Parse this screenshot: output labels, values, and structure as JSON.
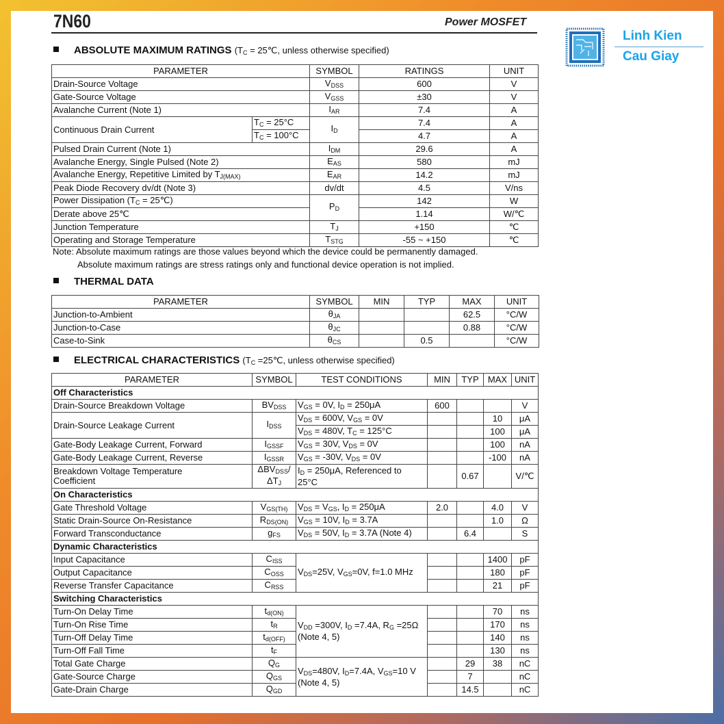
{
  "header": {
    "title": "7N60",
    "subtitle": "Power MOSFET"
  },
  "logo": {
    "line1": "Linh Kien",
    "line2": "Cau Giay",
    "color": "#1aa3e8"
  },
  "abs": {
    "heading": "ABSOLUTE MAXIMUM RATINGS",
    "note": "(T_{C} = 25℃, unless otherwise specified)",
    "rows": [
      [
        {
          "t": "PARAMETER",
          "cs": 2,
          "c": 1
        },
        {
          "t": "SYMBOL",
          "c": 1
        },
        {
          "t": "RATINGS",
          "c": 1
        },
        {
          "t": "UNIT",
          "c": 1
        }
      ],
      [
        {
          "t": "Drain-Source Voltage",
          "cs": 2
        },
        {
          "t": "V_{DSS}",
          "c": 1
        },
        {
          "t": "600",
          "c": 1
        },
        {
          "t": "V",
          "c": 1
        }
      ],
      [
        {
          "t": "Gate-Source Voltage",
          "cs": 2
        },
        {
          "t": "V_{GSS}",
          "c": 1
        },
        {
          "t": "±30",
          "c": 1
        },
        {
          "t": "V",
          "c": 1
        }
      ],
      [
        {
          "t": "Avalanche Current (Note 1)",
          "cs": 2
        },
        {
          "t": "I_{AR}",
          "c": 1
        },
        {
          "t": "7.4",
          "c": 1
        },
        {
          "t": "A",
          "c": 1
        }
      ],
      [
        {
          "t": "Continuous Drain Current",
          "rs": 2
        },
        {
          "t": "T_{C} = 25°C"
        },
        {
          "t": "I_{D}",
          "rs": 2,
          "c": 1
        },
        {
          "t": "7.4",
          "c": 1
        },
        {
          "t": "A",
          "c": 1
        }
      ],
      [
        {
          "t": "T_{C} = 100°C"
        },
        {
          "t": "4.7",
          "c": 1
        },
        {
          "t": "A",
          "c": 1
        }
      ],
      [
        {
          "t": "Pulsed Drain Current (Note 1)",
          "cs": 2
        },
        {
          "t": "I_{DM}",
          "c": 1
        },
        {
          "t": "29.6",
          "c": 1
        },
        {
          "t": "A",
          "c": 1
        }
      ],
      [
        {
          "t": "Avalanche Energy, Single Pulsed (Note 2)",
          "cs": 2
        },
        {
          "t": "E_{AS}",
          "c": 1
        },
        {
          "t": "580",
          "c": 1
        },
        {
          "t": "mJ",
          "c": 1
        }
      ],
      [
        {
          "t": "Avalanche Energy, Repetitive Limited by T_{J(MAX)}",
          "cs": 2
        },
        {
          "t": "E_{AR}",
          "c": 1
        },
        {
          "t": "14.2",
          "c": 1
        },
        {
          "t": "mJ",
          "c": 1
        }
      ],
      [
        {
          "t": "Peak Diode Recovery dv/dt (Note 3)",
          "cs": 2
        },
        {
          "t": "dv/dt",
          "c": 1
        },
        {
          "t": "4.5",
          "c": 1
        },
        {
          "t": "V/ns",
          "c": 1
        }
      ],
      [
        {
          "t": "Power Dissipation (T_{C} = 25℃)",
          "cs": 2
        },
        {
          "t": "P_{D}",
          "rs": 2,
          "c": 1
        },
        {
          "t": "142",
          "c": 1
        },
        {
          "t": "W",
          "c": 1
        }
      ],
      [
        {
          "t": "Derate above 25℃",
          "cs": 2
        },
        {
          "t": "1.14",
          "c": 1
        },
        {
          "t": "W/℃",
          "c": 1
        }
      ],
      [
        {
          "t": "Junction Temperature",
          "cs": 2
        },
        {
          "t": "T_{J}",
          "c": 1
        },
        {
          "t": "+150",
          "c": 1
        },
        {
          "t": "℃",
          "c": 1
        }
      ],
      [
        {
          "t": "Operating and Storage Temperature",
          "cs": 2
        },
        {
          "t": "T_{STG}",
          "c": 1
        },
        {
          "t": "-55 ~ +150",
          "c": 1
        },
        {
          "t": "℃",
          "c": 1
        }
      ]
    ],
    "note1": "Note: Absolute maximum ratings are those values beyond which the device could be permanently damaged.",
    "note2": "Absolute maximum ratings are stress ratings only and functional device operation is not implied."
  },
  "thermal": {
    "heading": "THERMAL DATA",
    "rows": [
      [
        {
          "t": "PARAMETER",
          "c": 1
        },
        {
          "t": "SYMBOL",
          "c": 1
        },
        {
          "t": "MIN",
          "c": 1
        },
        {
          "t": "TYP",
          "c": 1
        },
        {
          "t": "MAX",
          "c": 1
        },
        {
          "t": "UNIT",
          "c": 1
        }
      ],
      [
        {
          "t": "Junction-to-Ambient"
        },
        {
          "t": "θ_{JA}",
          "c": 1
        },
        {
          "t": ""
        },
        {
          "t": ""
        },
        {
          "t": "62.5",
          "c": 1
        },
        {
          "t": "°C/W",
          "c": 1
        }
      ],
      [
        {
          "t": "Junction-to-Case"
        },
        {
          "t": "θ_{JC}",
          "c": 1
        },
        {
          "t": ""
        },
        {
          "t": ""
        },
        {
          "t": "0.88",
          "c": 1
        },
        {
          "t": "°C/W",
          "c": 1
        }
      ],
      [
        {
          "t": "Case-to-Sink"
        },
        {
          "t": "θ_{CS}",
          "c": 1
        },
        {
          "t": ""
        },
        {
          "t": "0.5",
          "c": 1
        },
        {
          "t": ""
        },
        {
          "t": "°C/W",
          "c": 1
        }
      ]
    ]
  },
  "elec": {
    "heading": "ELECTRICAL CHARACTERISTICS",
    "note": "(T_{C} =25℃, unless otherwise specified)",
    "rows": [
      [
        {
          "t": "PARAMETER",
          "c": 1
        },
        {
          "t": "SYMBOL",
          "c": 1
        },
        {
          "t": "TEST CONDITIONS",
          "c": 1
        },
        {
          "t": "MIN",
          "c": 1
        },
        {
          "t": "TYP",
          "c": 1
        },
        {
          "t": "MAX",
          "c": 1
        },
        {
          "t": "UNIT",
          "c": 1
        }
      ],
      [
        {
          "t": "Off Characteristics",
          "cs": 7,
          "g": 1
        }
      ],
      [
        {
          "t": "Drain-Source Breakdown Voltage"
        },
        {
          "t": "BV_{DSS}",
          "c": 1
        },
        {
          "t": "V_{GS} = 0V, I_{D} = 250μA"
        },
        {
          "t": "600",
          "c": 1
        },
        {
          "t": ""
        },
        {
          "t": ""
        },
        {
          "t": "V",
          "c": 1
        }
      ],
      [
        {
          "t": "Drain-Source Leakage Current",
          "rs": 2
        },
        {
          "t": "I_{DSS}",
          "rs": 2,
          "c": 1
        },
        {
          "t": "V_{DS} = 600V, V_{GS} = 0V"
        },
        {
          "t": ""
        },
        {
          "t": ""
        },
        {
          "t": "10",
          "c": 1
        },
        {
          "t": "μA",
          "c": 1
        }
      ],
      [
        {
          "t": "V_{DS} = 480V, T_{C} = 125°C"
        },
        {
          "t": ""
        },
        {
          "t": ""
        },
        {
          "t": "100",
          "c": 1
        },
        {
          "t": "μA",
          "c": 1
        }
      ],
      [
        {
          "t": "Gate-Body Leakage Current, Forward"
        },
        {
          "t": "I_{GSSF}",
          "c": 1
        },
        {
          "t": "V_{GS} = 30V, V_{DS} = 0V"
        },
        {
          "t": ""
        },
        {
          "t": ""
        },
        {
          "t": "100",
          "c": 1
        },
        {
          "t": "nA",
          "c": 1
        }
      ],
      [
        {
          "t": "Gate-Body Leakage Current, Reverse"
        },
        {
          "t": "I_{GSSR}",
          "c": 1
        },
        {
          "t": "V_{GS} = -30V, V_{DS} = 0V"
        },
        {
          "t": ""
        },
        {
          "t": ""
        },
        {
          "t": "-100",
          "c": 1
        },
        {
          "t": "nA",
          "c": 1
        }
      ],
      [
        {
          "t": "Breakdown Voltage Temperature\nCoefficient"
        },
        {
          "t": "ΔBV_{DSS}/\nΔT_{J}",
          "c": 1
        },
        {
          "t": "I_{D} = 250μA, Referenced to\n25°C"
        },
        {
          "t": ""
        },
        {
          "t": "0.67",
          "c": 1
        },
        {
          "t": ""
        },
        {
          "t": "V/℃",
          "c": 1
        }
      ],
      [
        {
          "t": "On Characteristics",
          "cs": 7,
          "g": 1
        }
      ],
      [
        {
          "t": "Gate Threshold Voltage"
        },
        {
          "t": "V_{GS(TH)}",
          "c": 1
        },
        {
          "t": "V_{DS} = V_{GS}, I_{D} = 250μA"
        },
        {
          "t": "2.0",
          "c": 1
        },
        {
          "t": ""
        },
        {
          "t": "4.0",
          "c": 1
        },
        {
          "t": "V",
          "c": 1
        }
      ],
      [
        {
          "t": "Static Drain-Source On-Resistance"
        },
        {
          "t": "R_{DS(ON)}",
          "c": 1
        },
        {
          "t": "V_{GS} = 10V, I_{D} = 3.7A"
        },
        {
          "t": ""
        },
        {
          "t": ""
        },
        {
          "t": "1.0",
          "c": 1
        },
        {
          "t": "Ω",
          "c": 1
        }
      ],
      [
        {
          "t": "Forward Transconductance"
        },
        {
          "t": "g_{FS}",
          "c": 1
        },
        {
          "t": "V_{DS} = 50V, I_{D} = 3.7A (Note 4)"
        },
        {
          "t": ""
        },
        {
          "t": "6.4",
          "c": 1
        },
        {
          "t": ""
        },
        {
          "t": "S",
          "c": 1
        }
      ],
      [
        {
          "t": "Dynamic Characteristics",
          "cs": 7,
          "g": 1
        }
      ],
      [
        {
          "t": "Input Capacitance"
        },
        {
          "t": "C_{ISS}",
          "c": 1
        },
        {
          "t": "V_{DS}=25V, V_{GS}=0V, f=1.0 MHz",
          "rs": 3
        },
        {
          "t": ""
        },
        {
          "t": ""
        },
        {
          "t": "1400",
          "c": 1
        },
        {
          "t": "pF",
          "c": 1
        }
      ],
      [
        {
          "t": "Output Capacitance"
        },
        {
          "t": "C_{OSS}",
          "c": 1
        },
        {
          "t": ""
        },
        {
          "t": ""
        },
        {
          "t": "180",
          "c": 1
        },
        {
          "t": "pF",
          "c": 1
        }
      ],
      [
        {
          "t": "Reverse Transfer Capacitance"
        },
        {
          "t": "C_{RSS}",
          "c": 1
        },
        {
          "t": ""
        },
        {
          "t": ""
        },
        {
          "t": "21",
          "c": 1
        },
        {
          "t": "pF",
          "c": 1
        }
      ],
      [
        {
          "t": "Switching Characteristics",
          "cs": 7,
          "g": 1
        }
      ],
      [
        {
          "t": "Turn-On Delay Time"
        },
        {
          "t": "t_{d(ON)}",
          "c": 1
        },
        {
          "t": "V_{DD} =300V, I_{D} =7.4A, R_{G} =25Ω\n(Note 4, 5)",
          "rs": 4
        },
        {
          "t": ""
        },
        {
          "t": ""
        },
        {
          "t": "70",
          "c": 1
        },
        {
          "t": "ns",
          "c": 1
        }
      ],
      [
        {
          "t": "Turn-On Rise Time"
        },
        {
          "t": "t_{R}",
          "c": 1
        },
        {
          "t": ""
        },
        {
          "t": ""
        },
        {
          "t": "170",
          "c": 1
        },
        {
          "t": "ns",
          "c": 1
        }
      ],
      [
        {
          "t": "Turn-Off Delay Time"
        },
        {
          "t": "t_{d(OFF)}",
          "c": 1
        },
        {
          "t": ""
        },
        {
          "t": ""
        },
        {
          "t": "140",
          "c": 1
        },
        {
          "t": "ns",
          "c": 1
        }
      ],
      [
        {
          "t": "Turn-Off Fall Time"
        },
        {
          "t": "t_{F}",
          "c": 1
        },
        {
          "t": ""
        },
        {
          "t": ""
        },
        {
          "t": "130",
          "c": 1
        },
        {
          "t": "ns",
          "c": 1
        }
      ],
      [
        {
          "t": "Total Gate Charge"
        },
        {
          "t": "Q_{G}",
          "c": 1
        },
        {
          "t": "V_{DS}=480V, I_{D}=7.4A, V_{GS}=10 V\n(Note 4, 5)",
          "rs": 3
        },
        {
          "t": ""
        },
        {
          "t": "29",
          "c": 1
        },
        {
          "t": "38",
          "c": 1
        },
        {
          "t": "nC",
          "c": 1
        }
      ],
      [
        {
          "t": "Gate-Source Charge"
        },
        {
          "t": "Q_{GS}",
          "c": 1
        },
        {
          "t": ""
        },
        {
          "t": "7",
          "c": 1
        },
        {
          "t": ""
        },
        {
          "t": "nC",
          "c": 1
        }
      ],
      [
        {
          "t": "Gate-Drain Charge"
        },
        {
          "t": "Q_{GD}",
          "c": 1
        },
        {
          "t": ""
        },
        {
          "t": "14.5",
          "c": 1
        },
        {
          "t": ""
        },
        {
          "t": "nC",
          "c": 1
        }
      ]
    ]
  }
}
